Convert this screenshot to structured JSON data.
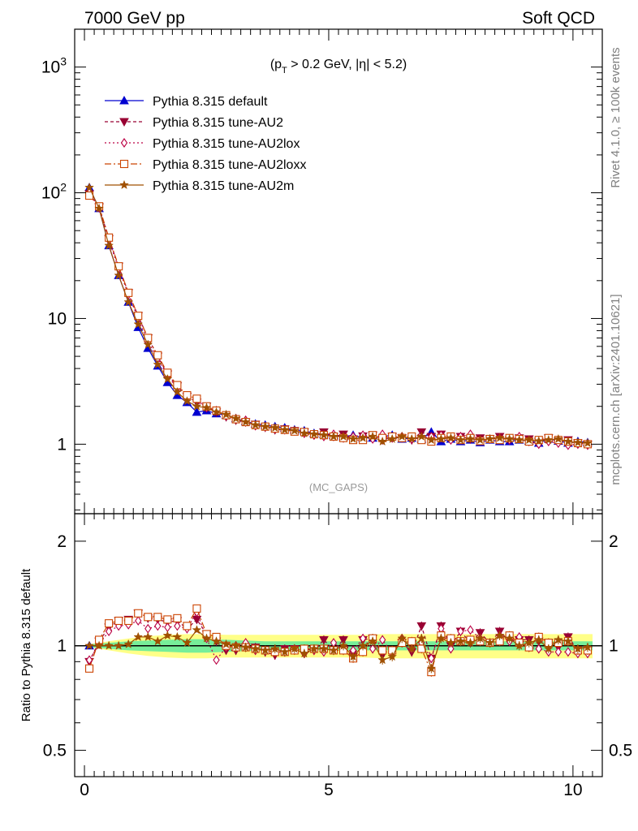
{
  "header": {
    "left": "7000 GeV pp",
    "right": "Soft QCD"
  },
  "side_labels": {
    "rivet": "Rivet 4.1.0, ≥ 100k events",
    "mcplots": "mcplots.cern.ch [arXiv:2401.10621]"
  },
  "chart_data": [
    {
      "type": "line",
      "title": "(p_T > 0.2 GeV, |η| < 5.2)",
      "title_parts": {
        "a": "(p",
        "sub": "T",
        "b": " > 0.2 GeV, ",
        "eta": "η",
        "c": "| < 5.2)"
      },
      "watermark": "(MC_GAPS)",
      "xlabel": "",
      "ylabel": "",
      "yscale": "log",
      "xlim": [
        -0.2,
        10.6
      ],
      "ylim": [
        0.28,
        2000
      ],
      "y_ticks": [
        {
          "value": 1,
          "label": "1"
        },
        {
          "value": 10,
          "label": "10"
        },
        {
          "value": 100,
          "label_base": "10",
          "label_exp": "2"
        },
        {
          "value": 1000,
          "label_base": "10",
          "label_exp": "3"
        }
      ],
      "legend_position": "top-left",
      "x": [
        0.1,
        0.3,
        0.5,
        0.7,
        0.9,
        1.1,
        1.3,
        1.5,
        1.7,
        1.9,
        2.1,
        2.3,
        2.5,
        2.7,
        2.9,
        3.1,
        3.3,
        3.5,
        3.7,
        3.9,
        4.1,
        4.3,
        4.5,
        4.7,
        4.9,
        5.1,
        5.3,
        5.5,
        5.7,
        5.9,
        6.1,
        6.3,
        6.5,
        6.7,
        6.9,
        7.1,
        7.3,
        7.5,
        7.7,
        7.9,
        8.1,
        8.3,
        8.5,
        8.7,
        8.9,
        9.1,
        9.3,
        9.5,
        9.7,
        9.9,
        10.1,
        10.3
      ],
      "series": [
        {
          "name": "Pythia 8.315 default",
          "color": "#0000d0",
          "marker": "triangle-up",
          "dash": "",
          "values": [
            110,
            75,
            38,
            22,
            13.5,
            8.5,
            5.8,
            4.2,
            3.1,
            2.45,
            2.15,
            1.8,
            1.85,
            1.75,
            1.7,
            1.6,
            1.52,
            1.45,
            1.42,
            1.38,
            1.35,
            1.3,
            1.28,
            1.22,
            1.2,
            1.18,
            1.15,
            1.18,
            1.12,
            1.12,
            1.15,
            1.18,
            1.1,
            1.12,
            1.1,
            1.25,
            1.05,
            1.1,
            1.05,
            1.08,
            1.03,
            1.08,
            1.05,
            1.05,
            1.08,
            1.06,
            1.02,
            1.1,
            1.06,
            1.02,
            1.05,
            1.03
          ]
        },
        {
          "name": "Pythia 8.315 tune-AU2",
          "color": "#990033",
          "marker": "triangle-down",
          "dash": "4,3",
          "values": [
            98,
            77,
            43,
            26,
            16,
            10.5,
            7,
            5,
            3.6,
            2.9,
            2.4,
            2.15,
            2.0,
            1.8,
            1.65,
            1.55,
            1.5,
            1.44,
            1.36,
            1.3,
            1.32,
            1.28,
            1.25,
            1.18,
            1.25,
            1.15,
            1.2,
            1.1,
            1.16,
            1.18,
            1.08,
            1.15,
            1.12,
            1.08,
            1.25,
            1.15,
            1.2,
            1.1,
            1.15,
            1.1,
            1.12,
            1.1,
            1.15,
            1.08,
            1.12,
            1.1,
            1.05,
            1.12,
            1.05,
            1.08,
            1.02,
            1.0
          ]
        },
        {
          "name": "Pythia 8.315 tune-AU2lox",
          "color": "#bb0044",
          "marker": "diamond-open",
          "dash": "2,3",
          "values": [
            100,
            76,
            42,
            25,
            15.5,
            10,
            6.5,
            4.8,
            3.5,
            2.8,
            2.4,
            2.25,
            1.95,
            1.85,
            1.68,
            1.6,
            1.55,
            1.4,
            1.38,
            1.32,
            1.3,
            1.28,
            1.22,
            1.18,
            1.15,
            1.2,
            1.12,
            1.15,
            1.18,
            1.1,
            1.2,
            1.12,
            1.15,
            1.1,
            1.12,
            1.15,
            1.18,
            1.08,
            1.15,
            1.2,
            1.08,
            1.1,
            1.12,
            1.08,
            1.15,
            1.05,
            1.0,
            1.05,
            1.02,
            0.98,
            1.0,
            0.98
          ]
        },
        {
          "name": "Pythia 8.315 tune-AU2loxx",
          "color": "#cc4400",
          "marker": "square-open",
          "dash": "8,3,2,3",
          "values": [
            95,
            78,
            44,
            26,
            16,
            10.5,
            7,
            5.1,
            3.7,
            2.95,
            2.45,
            2.3,
            2.0,
            1.85,
            1.7,
            1.58,
            1.5,
            1.42,
            1.38,
            1.33,
            1.3,
            1.26,
            1.25,
            1.2,
            1.18,
            1.15,
            1.12,
            1.08,
            1.08,
            1.18,
            1.12,
            1.15,
            1.12,
            1.15,
            1.08,
            1.05,
            1.12,
            1.15,
            1.08,
            1.12,
            1.06,
            1.1,
            1.08,
            1.12,
            1.1,
            1.05,
            1.08,
            1.12,
            1.08,
            1.05,
            1.02,
            1.0
          ]
        },
        {
          "name": "Pythia 8.315 tune-AU2m",
          "color": "#a05000",
          "marker": "star",
          "dash": "",
          "values": [
            110,
            75,
            38,
            22,
            13.5,
            9,
            6.2,
            4.3,
            3.3,
            2.6,
            2.2,
            2.0,
            1.95,
            1.8,
            1.72,
            1.6,
            1.5,
            1.42,
            1.38,
            1.35,
            1.3,
            1.28,
            1.22,
            1.2,
            1.18,
            1.15,
            1.15,
            1.1,
            1.12,
            1.15,
            1.05,
            1.1,
            1.15,
            1.1,
            1.15,
            1.08,
            1.1,
            1.12,
            1.08,
            1.1,
            1.08,
            1.1,
            1.12,
            1.1,
            1.08,
            1.08,
            1.06,
            1.08,
            1.1,
            1.05,
            1.03,
            1.02
          ]
        }
      ]
    },
    {
      "type": "line",
      "title": "",
      "xlabel": "",
      "ylabel": "Ratio to Pythia 8.315 default",
      "yscale": "log",
      "xlim": [
        -0.2,
        10.6
      ],
      "ylim": [
        0.42,
        2.4
      ],
      "x_ticks": [
        0,
        5,
        10
      ],
      "y_ticks": [
        {
          "value": 0.5,
          "label": "0.5"
        },
        {
          "value": 1,
          "label": "1"
        },
        {
          "value": 2,
          "label": "2"
        }
      ],
      "band_inner": {
        "color": "#77ee99",
        "lower": [
          0.99,
          0.98,
          0.97,
          0.965,
          0.96,
          0.955,
          0.955,
          0.96,
          0.965,
          0.97,
          0.97,
          0.97,
          0.97,
          0.97,
          0.97,
          0.97,
          0.97,
          0.97,
          0.97,
          0.97,
          0.97,
          0.97,
          0.97,
          0.97,
          0.97,
          0.97,
          0.97
        ],
        "upper": [
          1.01,
          1.02,
          1.03,
          1.035,
          1.04,
          1.045,
          1.045,
          1.04,
          1.035,
          1.03,
          1.03,
          1.03,
          1.03,
          1.03,
          1.03,
          1.03,
          1.03,
          1.03,
          1.03,
          1.03,
          1.03,
          1.03,
          1.03,
          1.03,
          1.03,
          1.03,
          1.03
        ]
      },
      "band_outer": {
        "color": "#ffff88",
        "lower": [
          0.99,
          0.97,
          0.95,
          0.935,
          0.925,
          0.92,
          0.92,
          0.925,
          0.925,
          0.925,
          0.925,
          0.925,
          0.925,
          0.925,
          0.925,
          0.92,
          0.92,
          0.92,
          0.92,
          0.92,
          0.92,
          0.92,
          0.92,
          0.92,
          0.92,
          0.92,
          0.92
        ],
        "upper": [
          1.01,
          1.03,
          1.05,
          1.065,
          1.075,
          1.08,
          1.08,
          1.075,
          1.075,
          1.075,
          1.075,
          1.075,
          1.075,
          1.075,
          1.075,
          1.08,
          1.08,
          1.08,
          1.08,
          1.08,
          1.08,
          1.08,
          1.08,
          1.08,
          1.08,
          1.08,
          1.08
        ]
      },
      "band_x": [
        0.1,
        0.5,
        0.9,
        1.3,
        1.7,
        2.1,
        2.5,
        2.9,
        3.3,
        3.7,
        4.1,
        4.5,
        4.9,
        5.3,
        5.7,
        6.1,
        6.5,
        6.9,
        7.3,
        7.7,
        8.1,
        8.5,
        8.9,
        9.3,
        9.7,
        10.1,
        10.4
      ],
      "x": [
        0.1,
        0.3,
        0.5,
        0.7,
        0.9,
        1.1,
        1.3,
        1.5,
        1.7,
        1.9,
        2.1,
        2.3,
        2.5,
        2.7,
        2.9,
        3.1,
        3.3,
        3.5,
        3.7,
        3.9,
        4.1,
        4.3,
        4.5,
        4.7,
        4.9,
        5.1,
        5.3,
        5.5,
        5.7,
        5.9,
        6.1,
        6.3,
        6.5,
        6.7,
        6.9,
        7.1,
        7.3,
        7.5,
        7.7,
        7.9,
        8.1,
        8.3,
        8.5,
        8.7,
        8.9,
        9.1,
        9.3,
        9.5,
        9.7,
        9.9,
        10.1,
        10.3
      ],
      "series": [
        {
          "name": "Pythia 8.315 tune-AU2",
          "color": "#990033",
          "marker": "triangle-down",
          "dash": "4,3",
          "values": [
            0.9,
            1.03,
            1.13,
            1.18,
            1.19,
            1.24,
            1.2,
            1.19,
            1.17,
            1.18,
            1.12,
            1.19,
            1.08,
            1.03,
            0.97,
            0.97,
            0.99,
            0.99,
            0.96,
            0.94,
            0.98,
            0.98,
            0.98,
            0.97,
            1.04,
            0.97,
            1.04,
            0.93,
            1.04,
            1.05,
            0.94,
            0.97,
            1.02,
            0.96,
            1.14,
            0.92,
            1.14,
            1.0,
            1.1,
            1.02,
            1.09,
            1.02,
            1.1,
            1.03,
            1.04,
            1.04,
            1.03,
            1.02,
            0.99,
            1.06,
            0.97,
            0.97
          ]
        },
        {
          "name": "Pythia 8.315 tune-AU2lox",
          "color": "#bb0044",
          "marker": "diamond-open",
          "dash": "2,3",
          "values": [
            0.91,
            1.01,
            1.1,
            1.14,
            1.15,
            1.18,
            1.12,
            1.14,
            1.13,
            1.14,
            1.12,
            1.25,
            1.05,
            0.91,
            0.99,
            1.0,
            1.02,
            0.97,
            0.97,
            0.96,
            0.96,
            0.98,
            0.95,
            0.97,
            0.96,
            1.02,
            0.97,
            0.97,
            1.05,
            0.98,
            1.04,
            0.95,
            1.05,
            0.98,
            1.02,
            0.92,
            1.12,
            0.98,
            1.1,
            1.11,
            1.05,
            1.02,
            1.07,
            1.03,
            1.06,
            0.99,
            0.98,
            0.96,
            0.96,
            0.96,
            0.95,
            0.95
          ]
        },
        {
          "name": "Pythia 8.315 tune-AU2loxx",
          "color": "#cc4400",
          "marker": "square-open",
          "dash": "8,3,2,3",
          "values": [
            0.86,
            1.04,
            1.16,
            1.18,
            1.18,
            1.24,
            1.21,
            1.21,
            1.19,
            1.2,
            1.14,
            1.28,
            1.08,
            1.06,
            1.0,
            0.99,
            0.99,
            0.98,
            0.97,
            0.96,
            0.96,
            0.97,
            0.98,
            0.98,
            0.98,
            0.97,
            0.97,
            0.92,
            0.96,
            1.05,
            0.97,
            0.97,
            1.02,
            1.03,
            0.98,
            0.84,
            1.07,
            1.05,
            1.03,
            1.04,
            1.03,
            1.02,
            1.03,
            1.07,
            1.02,
            0.99,
            1.06,
            1.02,
            1.02,
            1.03,
            0.97,
            0.97
          ]
        },
        {
          "name": "Pythia 8.315 tune-AU2m",
          "color": "#a05000",
          "marker": "star",
          "dash": "",
          "values": [
            1.0,
            1.0,
            1.0,
            1.0,
            1.01,
            1.06,
            1.06,
            1.03,
            1.07,
            1.06,
            1.02,
            1.11,
            1.05,
            1.03,
            1.01,
            1.0,
            0.99,
            0.98,
            0.97,
            0.98,
            0.96,
            0.98,
            0.95,
            0.98,
            0.98,
            0.97,
            1.0,
            0.93,
            1.0,
            1.03,
            0.91,
            0.93,
            1.05,
            0.98,
            1.05,
            0.86,
            1.05,
            1.02,
            1.03,
            1.02,
            1.05,
            1.02,
            1.07,
            1.05,
            1.0,
            1.02,
            1.04,
            0.98,
            1.04,
            1.03,
            0.98,
            0.99
          ]
        }
      ]
    }
  ]
}
